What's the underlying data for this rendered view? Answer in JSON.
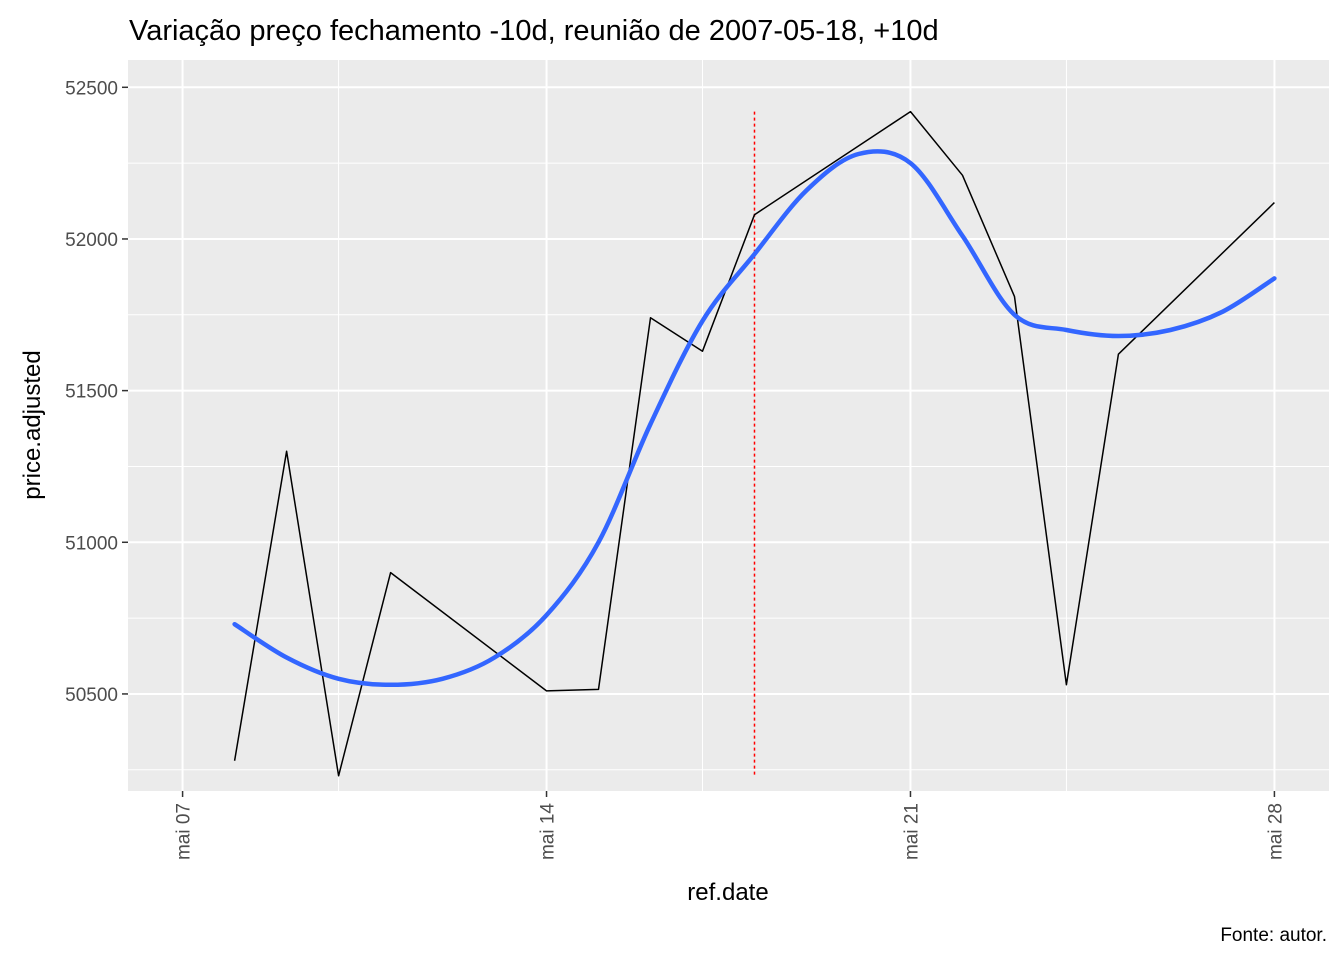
{
  "chart_data": {
    "type": "line",
    "title": "Variação preço fechamento -10d, reunião de 2007-05-18, +10d",
    "xlabel": "ref.date",
    "ylabel": "price.adjusted",
    "caption": "Fonte: autor.",
    "xlim": [
      "2007-05-07",
      "2007-05-28"
    ],
    "ylim": [
      50200,
      52500
    ],
    "x_ticks": [
      "2007-05-07",
      "2007-05-14",
      "2007-05-21",
      "2007-05-28"
    ],
    "x_tick_labels": [
      "mai 07",
      "mai 14",
      "mai 21",
      "mai 28"
    ],
    "y_ticks": [
      50500,
      51000,
      51500,
      52000,
      52500
    ],
    "y_tick_labels": [
      "50500",
      "51000",
      "51500",
      "52000",
      "52500"
    ],
    "grid": true,
    "series": [
      {
        "type": "line",
        "color": "#000000",
        "x": [
          "2007-05-08",
          "2007-05-09",
          "2007-05-10",
          "2007-05-11",
          "2007-05-14",
          "2007-05-15",
          "2007-05-16",
          "2007-05-17",
          "2007-05-18",
          "2007-05-21",
          "2007-05-22",
          "2007-05-23",
          "2007-05-24",
          "2007-05-25",
          "2007-05-28"
        ],
        "values": [
          50280,
          51300,
          50230,
          50900,
          50510,
          50515,
          51740,
          51630,
          52080,
          52420,
          52210,
          51810,
          50530,
          51620,
          52120
        ]
      },
      {
        "type": "smooth",
        "color": "#3366ff",
        "x": [
          "2007-05-08",
          "2007-05-09",
          "2007-05-10",
          "2007-05-11",
          "2007-05-12",
          "2007-05-13",
          "2007-05-14",
          "2007-05-15",
          "2007-05-16",
          "2007-05-17",
          "2007-05-18",
          "2007-05-19",
          "2007-05-20",
          "2007-05-21",
          "2007-05-22",
          "2007-05-23",
          "2007-05-24",
          "2007-05-25",
          "2007-05-26",
          "2007-05-27",
          "2007-05-28"
        ],
        "values": [
          50730,
          50620,
          50550,
          50530,
          50550,
          50620,
          50760,
          51000,
          51390,
          51730,
          51950,
          52160,
          52280,
          52250,
          52010,
          51750,
          51700,
          51680,
          51700,
          51760,
          51870
        ]
      }
    ],
    "vline": {
      "x": "2007-05-18",
      "color": "#ff0000",
      "style": "dotted"
    }
  },
  "colors": {
    "panel": "#ebebeb",
    "grid_major": "#ffffff",
    "price_line": "#000000",
    "smooth_line": "#3366ff",
    "meeting_line": "#ff0000"
  }
}
